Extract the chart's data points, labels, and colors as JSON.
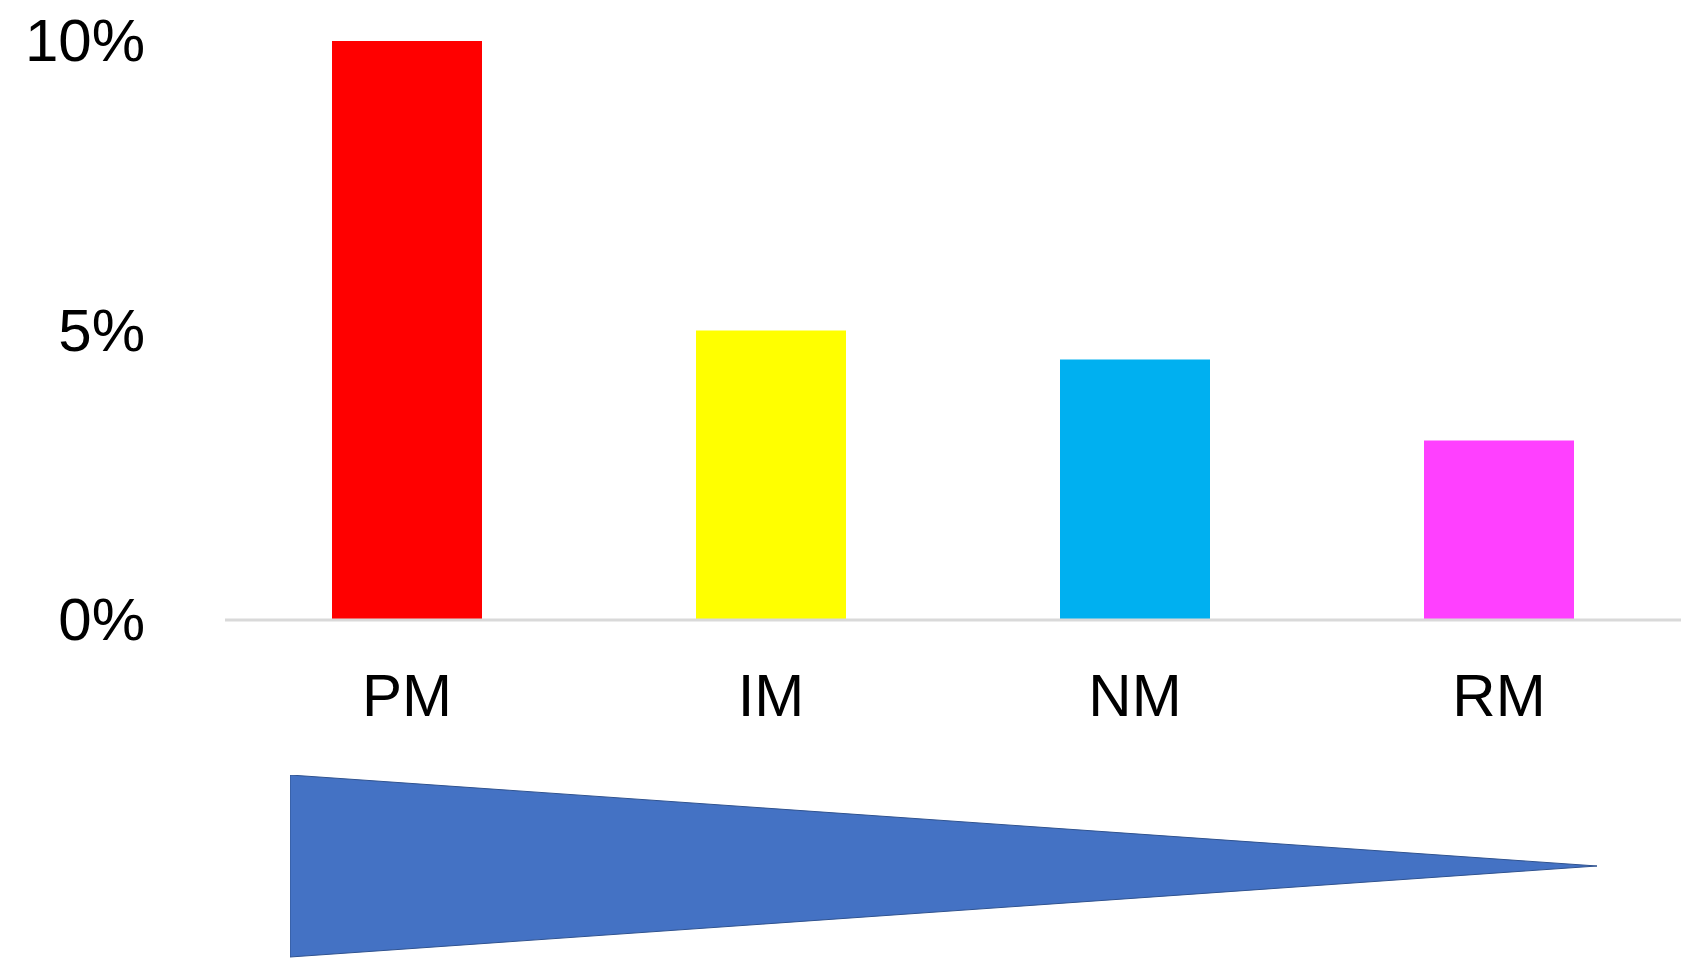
{
  "chart_data": {
    "type": "bar",
    "categories": [
      "PM",
      "IM",
      "NM",
      "RM"
    ],
    "values": [
      10,
      5.0,
      4.5,
      3.1
    ],
    "colors": [
      "#ff0000",
      "#ffff00",
      "#00b0f0",
      "#ff40ff"
    ],
    "ylim": [
      0,
      10
    ],
    "yticks": [
      {
        "value": 0,
        "label": "0%"
      },
      {
        "value": 5,
        "label": "5%"
      },
      {
        "value": 10,
        "label": "10%"
      }
    ]
  }
}
